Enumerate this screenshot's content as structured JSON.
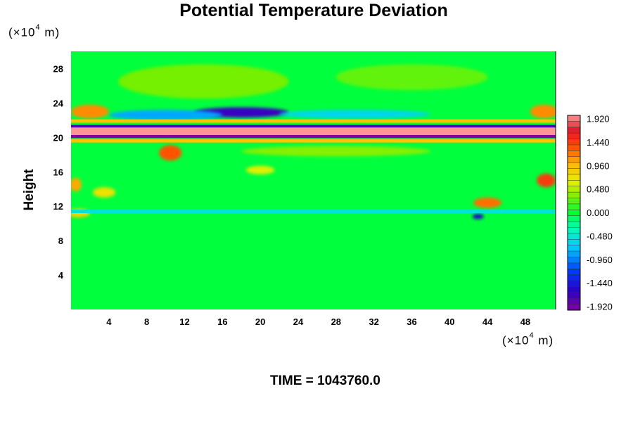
{
  "chart_data": {
    "type": "heatmap",
    "title": "Potential Temperature Deviation",
    "ylabel": "Height",
    "x_unit_prefix": "(×10",
    "x_unit_exp": "4",
    "x_unit_suffix": " m)",
    "y_unit_prefix": "(×10",
    "y_unit_exp": "4",
    "y_unit_suffix": " m)",
    "time_label": "TIME = 1043760.0",
    "xlim": [
      0,
      51.2
    ],
    "ylim": [
      0,
      30
    ],
    "x_ticks": [
      4,
      8,
      12,
      16,
      20,
      24,
      28,
      32,
      36,
      40,
      44,
      48
    ],
    "x_tick_labels": [
      "4",
      "8",
      "12",
      "16",
      "20",
      "24",
      "28",
      "32",
      "36",
      "40",
      "44",
      "48"
    ],
    "y_ticks": [
      4,
      8,
      12,
      16,
      20,
      24,
      28
    ],
    "y_tick_labels": [
      "4",
      "8",
      "12",
      "16",
      "20",
      "24",
      "28"
    ],
    "colorbar": {
      "min": -1.92,
      "max": 1.92,
      "levels": 33,
      "tick_values": [
        1.92,
        1.44,
        0.96,
        0.48,
        0.0,
        -0.48,
        -0.96,
        -1.44,
        -1.92
      ],
      "tick_labels": [
        "1.920",
        "1.440",
        "0.960",
        "0.480",
        "0.000",
        "-0.480",
        "-0.960",
        "-1.440",
        "-1.920"
      ]
    },
    "background_value": 0.0,
    "features": [
      {
        "kind": "band",
        "x0": 0,
        "x1": 51.2,
        "y_center": 20.7,
        "thickness": 0.9,
        "value": 1.92
      },
      {
        "kind": "band",
        "x0": 0,
        "x1": 51.2,
        "y_center": 20.1,
        "thickness": 0.35,
        "value": -1.92
      },
      {
        "kind": "band",
        "x0": 0,
        "x1": 51.2,
        "y_center": 21.3,
        "thickness": 0.3,
        "value": -1.7
      },
      {
        "kind": "band",
        "x0": 0,
        "x1": 51.2,
        "y_center": 21.9,
        "thickness": 0.4,
        "value": 0.9
      },
      {
        "kind": "band",
        "x0": 0,
        "x1": 51.2,
        "y_center": 19.6,
        "thickness": 0.4,
        "value": 0.9
      },
      {
        "kind": "band",
        "x0": 0,
        "x1": 51.2,
        "y_center": 11.4,
        "thickness": 0.4,
        "value": -0.5
      },
      {
        "kind": "blob",
        "x": 18,
        "y": 22.9,
        "rx": 5,
        "ry": 0.6,
        "value": -1.6
      },
      {
        "kind": "blob",
        "x": 10,
        "y": 22.6,
        "rx": 6,
        "ry": 0.6,
        "value": -0.8
      },
      {
        "kind": "blob",
        "x": 30,
        "y": 22.7,
        "rx": 8,
        "ry": 0.5,
        "value": -0.6
      },
      {
        "kind": "blob",
        "x": 2,
        "y": 23.0,
        "rx": 2,
        "ry": 0.8,
        "value": 1.1
      },
      {
        "kind": "blob",
        "x": 50,
        "y": 23.0,
        "rx": 1.5,
        "ry": 0.8,
        "value": 1.1
      },
      {
        "kind": "blob",
        "x": 10.5,
        "y": 18.2,
        "rx": 1.2,
        "ry": 0.9,
        "value": 1.3
      },
      {
        "kind": "blob",
        "x": 20,
        "y": 16.2,
        "rx": 1.5,
        "ry": 0.5,
        "value": 0.6
      },
      {
        "kind": "blob",
        "x": 3.5,
        "y": 13.6,
        "rx": 1.2,
        "ry": 0.6,
        "value": 0.7
      },
      {
        "kind": "blob",
        "x": 50.2,
        "y": 15.0,
        "rx": 1.0,
        "ry": 0.8,
        "value": 1.4
      },
      {
        "kind": "blob",
        "x": 44,
        "y": 12.4,
        "rx": 1.5,
        "ry": 0.6,
        "value": 1.2
      },
      {
        "kind": "blob",
        "x": 0.5,
        "y": 14.5,
        "rx": 0.6,
        "ry": 0.8,
        "value": 1.0
      },
      {
        "kind": "blob",
        "x": 43,
        "y": 10.8,
        "rx": 0.6,
        "ry": 0.3,
        "value": -1.5
      },
      {
        "kind": "blob",
        "x": 14,
        "y": 26.5,
        "rx": 9,
        "ry": 2.0,
        "value": 0.3
      },
      {
        "kind": "blob",
        "x": 36,
        "y": 27.0,
        "rx": 8,
        "ry": 1.5,
        "value": 0.25
      },
      {
        "kind": "blob",
        "x": 0.8,
        "y": 11.2,
        "rx": 1.2,
        "ry": 0.5,
        "value": 0.8
      },
      {
        "kind": "blob",
        "x": 28,
        "y": 18.4,
        "rx": 10,
        "ry": 0.6,
        "value": 0.35
      }
    ]
  }
}
